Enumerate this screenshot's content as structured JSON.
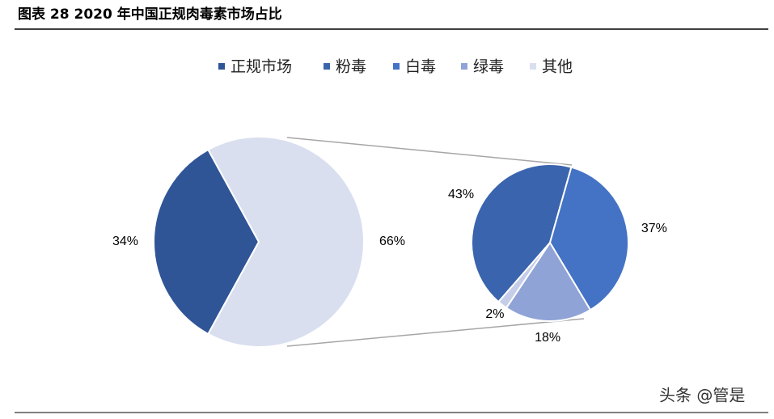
{
  "chart_data": {
    "type": "pie-of-pie",
    "title": "图表 28 2020 年中国正规肉毒素市场占比",
    "legend": [
      {
        "name": "正规市场",
        "color": "#2f5597"
      },
      {
        "name": "粉毒",
        "color": "#3a64ae"
      },
      {
        "name": "白毒",
        "color": "#4472c4"
      },
      {
        "name": "绿毒",
        "color": "#8fa3d6"
      },
      {
        "name": "其他",
        "color": "#d9dfef"
      }
    ],
    "main": {
      "values": [
        34,
        66
      ],
      "value_labels": [
        "34%",
        "66%"
      ],
      "colors": [
        "#2f5597",
        "#d9dfef"
      ]
    },
    "sub": {
      "values": [
        43,
        37,
        18,
        2
      ],
      "value_labels": [
        "43%",
        "37%",
        "18%",
        "2%"
      ],
      "colors": [
        "#3a64ae",
        "#4472c4",
        "#8fa3d6",
        "#c5cde8"
      ]
    },
    "watermark": "头条 @管是"
  }
}
